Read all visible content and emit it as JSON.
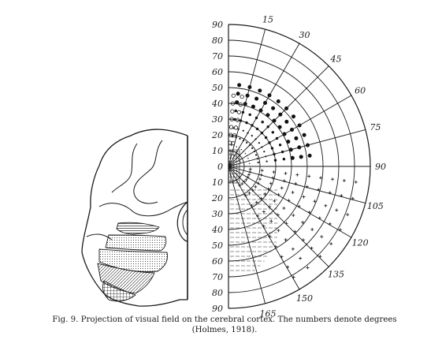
{
  "figure": {
    "left_scale": [
      "90",
      "80",
      "70",
      "60",
      "50",
      "40",
      "30",
      "20",
      "10",
      "0",
      "10",
      "20",
      "30",
      "40",
      "50",
      "60",
      "70",
      "80",
      "90"
    ],
    "arc_scale": [
      "15",
      "30",
      "45",
      "60",
      "75",
      "90",
      "105",
      "120",
      "135",
      "150",
      "165"
    ]
  },
  "caption": {
    "line1": "Fig. 9. Projection of visual field on the cerebral cortex. The numbers denote degrees",
    "line2": "(Holmes, 1918)."
  }
}
